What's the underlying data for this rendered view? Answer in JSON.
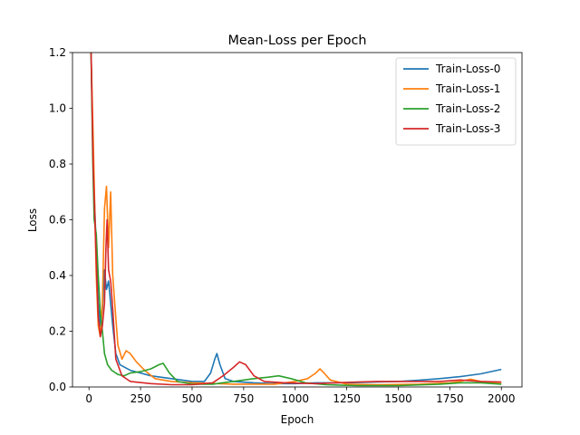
{
  "chart_data": {
    "type": "line",
    "title": "Mean-Loss per Epoch",
    "xlabel": "Epoch",
    "ylabel": "Loss",
    "xlim": [
      -80,
      2100
    ],
    "ylim": [
      0,
      1.2
    ],
    "xticks": [
      0,
      250,
      500,
      750,
      1000,
      1250,
      1500,
      1750,
      2000
    ],
    "yticks": [
      0.0,
      0.2,
      0.4,
      0.6,
      0.8,
      1.0,
      1.2
    ],
    "xtick_labels": [
      "0",
      "250",
      "500",
      "750",
      "1000",
      "1250",
      "1500",
      "1750",
      "2000"
    ],
    "ytick_labels": [
      "0.0",
      "0.2",
      "0.4",
      "0.6",
      "0.8",
      "1.0",
      "1.2"
    ],
    "grid": false,
    "legend_position": "top-right",
    "series": [
      {
        "name": "Train-Loss-0",
        "color": "#1f77b4",
        "points": [
          [
            10,
            1.2
          ],
          [
            20,
            0.8
          ],
          [
            35,
            0.5
          ],
          [
            45,
            0.3
          ],
          [
            55,
            0.22
          ],
          [
            65,
            0.28
          ],
          [
            75,
            0.42
          ],
          [
            85,
            0.35
          ],
          [
            95,
            0.38
          ],
          [
            105,
            0.3
          ],
          [
            115,
            0.22
          ],
          [
            130,
            0.12
          ],
          [
            150,
            0.08
          ],
          [
            200,
            0.06
          ],
          [
            250,
            0.05
          ],
          [
            300,
            0.04
          ],
          [
            400,
            0.03
          ],
          [
            500,
            0.02
          ],
          [
            560,
            0.02
          ],
          [
            590,
            0.05
          ],
          [
            610,
            0.1
          ],
          [
            620,
            0.12
          ],
          [
            635,
            0.08
          ],
          [
            660,
            0.03
          ],
          [
            700,
            0.02
          ],
          [
            800,
            0.015
          ],
          [
            900,
            0.012
          ],
          [
            1000,
            0.012
          ],
          [
            1100,
            0.015
          ],
          [
            1200,
            0.015
          ],
          [
            1300,
            0.016
          ],
          [
            1400,
            0.018
          ],
          [
            1500,
            0.02
          ],
          [
            1600,
            0.024
          ],
          [
            1700,
            0.03
          ],
          [
            1800,
            0.037
          ],
          [
            1900,
            0.047
          ],
          [
            2000,
            0.063
          ]
        ]
      },
      {
        "name": "Train-Loss-1",
        "color": "#ff7f0e",
        "points": [
          [
            10,
            1.2
          ],
          [
            20,
            0.9
          ],
          [
            35,
            0.4
          ],
          [
            45,
            0.22
          ],
          [
            55,
            0.18
          ],
          [
            65,
            0.3
          ],
          [
            75,
            0.64
          ],
          [
            85,
            0.72
          ],
          [
            95,
            0.5
          ],
          [
            105,
            0.7
          ],
          [
            115,
            0.4
          ],
          [
            125,
            0.3
          ],
          [
            140,
            0.15
          ],
          [
            160,
            0.1
          ],
          [
            180,
            0.13
          ],
          [
            200,
            0.12
          ],
          [
            230,
            0.09
          ],
          [
            270,
            0.06
          ],
          [
            320,
            0.03
          ],
          [
            400,
            0.02
          ],
          [
            500,
            0.015
          ],
          [
            700,
            0.01
          ],
          [
            900,
            0.01
          ],
          [
            1000,
            0.02
          ],
          [
            1060,
            0.03
          ],
          [
            1100,
            0.05
          ],
          [
            1120,
            0.065
          ],
          [
            1140,
            0.05
          ],
          [
            1170,
            0.025
          ],
          [
            1250,
            0.01
          ],
          [
            1400,
            0.008
          ],
          [
            1600,
            0.01
          ],
          [
            1750,
            0.015
          ],
          [
            1800,
            0.02
          ],
          [
            1850,
            0.028
          ],
          [
            1900,
            0.02
          ],
          [
            2000,
            0.012
          ]
        ]
      },
      {
        "name": "Train-Loss-2",
        "color": "#2ca02c",
        "points": [
          [
            10,
            1.2
          ],
          [
            18,
            0.82
          ],
          [
            25,
            0.6
          ],
          [
            35,
            0.55
          ],
          [
            45,
            0.4
          ],
          [
            55,
            0.27
          ],
          [
            65,
            0.2
          ],
          [
            75,
            0.12
          ],
          [
            90,
            0.08
          ],
          [
            110,
            0.06
          ],
          [
            140,
            0.045
          ],
          [
            170,
            0.04
          ],
          [
            200,
            0.05
          ],
          [
            250,
            0.055
          ],
          [
            300,
            0.065
          ],
          [
            340,
            0.08
          ],
          [
            360,
            0.085
          ],
          [
            390,
            0.05
          ],
          [
            430,
            0.02
          ],
          [
            500,
            0.01
          ],
          [
            600,
            0.01
          ],
          [
            700,
            0.02
          ],
          [
            800,
            0.03
          ],
          [
            870,
            0.035
          ],
          [
            920,
            0.04
          ],
          [
            980,
            0.03
          ],
          [
            1050,
            0.015
          ],
          [
            1150,
            0.008
          ],
          [
            1300,
            0.005
          ],
          [
            1500,
            0.005
          ],
          [
            1700,
            0.01
          ],
          [
            1800,
            0.015
          ],
          [
            1900,
            0.015
          ],
          [
            2000,
            0.01
          ]
        ]
      },
      {
        "name": "Train-Loss-3",
        "color": "#d62728",
        "points": [
          [
            10,
            1.2
          ],
          [
            20,
            0.8
          ],
          [
            35,
            0.45
          ],
          [
            45,
            0.25
          ],
          [
            55,
            0.18
          ],
          [
            65,
            0.22
          ],
          [
            75,
            0.3
          ],
          [
            82,
            0.5
          ],
          [
            88,
            0.6
          ],
          [
            95,
            0.42
          ],
          [
            105,
            0.38
          ],
          [
            115,
            0.28
          ],
          [
            130,
            0.1
          ],
          [
            160,
            0.04
          ],
          [
            200,
            0.02
          ],
          [
            300,
            0.012
          ],
          [
            400,
            0.008
          ],
          [
            500,
            0.008
          ],
          [
            600,
            0.015
          ],
          [
            650,
            0.04
          ],
          [
            700,
            0.07
          ],
          [
            730,
            0.09
          ],
          [
            760,
            0.08
          ],
          [
            800,
            0.04
          ],
          [
            850,
            0.02
          ],
          [
            950,
            0.015
          ],
          [
            1100,
            0.012
          ],
          [
            1200,
            0.015
          ],
          [
            1300,
            0.018
          ],
          [
            1400,
            0.02
          ],
          [
            1500,
            0.02
          ],
          [
            1600,
            0.02
          ],
          [
            1700,
            0.02
          ],
          [
            1800,
            0.025
          ],
          [
            1900,
            0.02
          ],
          [
            2000,
            0.018
          ]
        ]
      }
    ]
  }
}
